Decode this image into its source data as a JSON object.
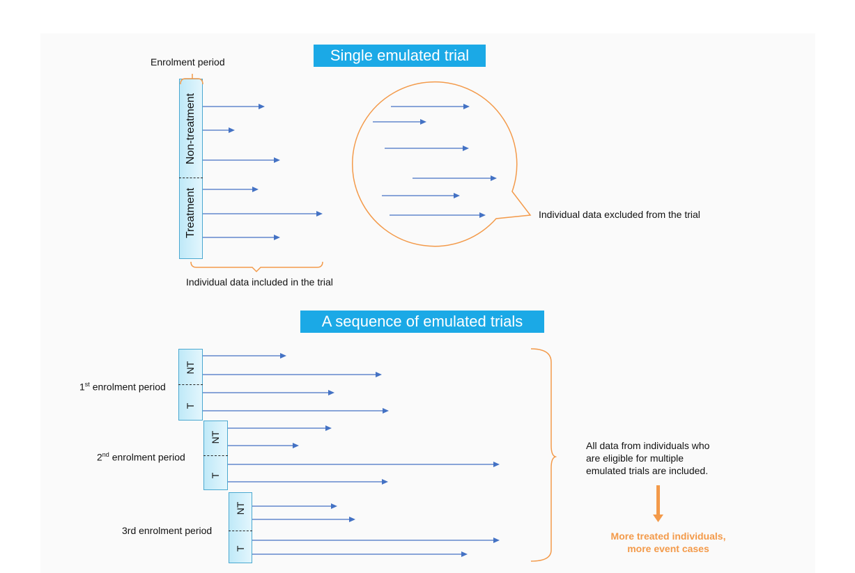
{
  "top": {
    "banner": "Single emulated trial",
    "enrolment_label": "Enrolment period",
    "non_treatment_label": "Non-treatment",
    "treatment_label": "Treatment",
    "included_label": "Individual data included in the trial",
    "excluded_label": "Individual data excluded from the trial"
  },
  "bottom": {
    "banner": "A sequence of emulated trials",
    "periods": [
      {
        "prefix": "1",
        "sup": "st",
        "suffix": " enrolment period",
        "nt": "NT",
        "t": "T"
      },
      {
        "prefix": "2",
        "sup": "nd",
        "suffix": " enrolment period",
        "nt": "NT",
        "t": "T"
      },
      {
        "prefix": "3rd",
        "sup": "",
        "suffix": " enrolment period",
        "nt": "NT",
        "t": "T"
      }
    ],
    "note_lines": [
      "All data from individuals who",
      "are eligible for multiple",
      "emulated trials are included."
    ],
    "result_lines": [
      "More treated individuals,",
      "more event cases"
    ]
  },
  "colors": {
    "banner": "#1ba9e6",
    "arrow": "#4472c4",
    "bracket": "#f39a4a",
    "box": "#bfe9f8"
  }
}
